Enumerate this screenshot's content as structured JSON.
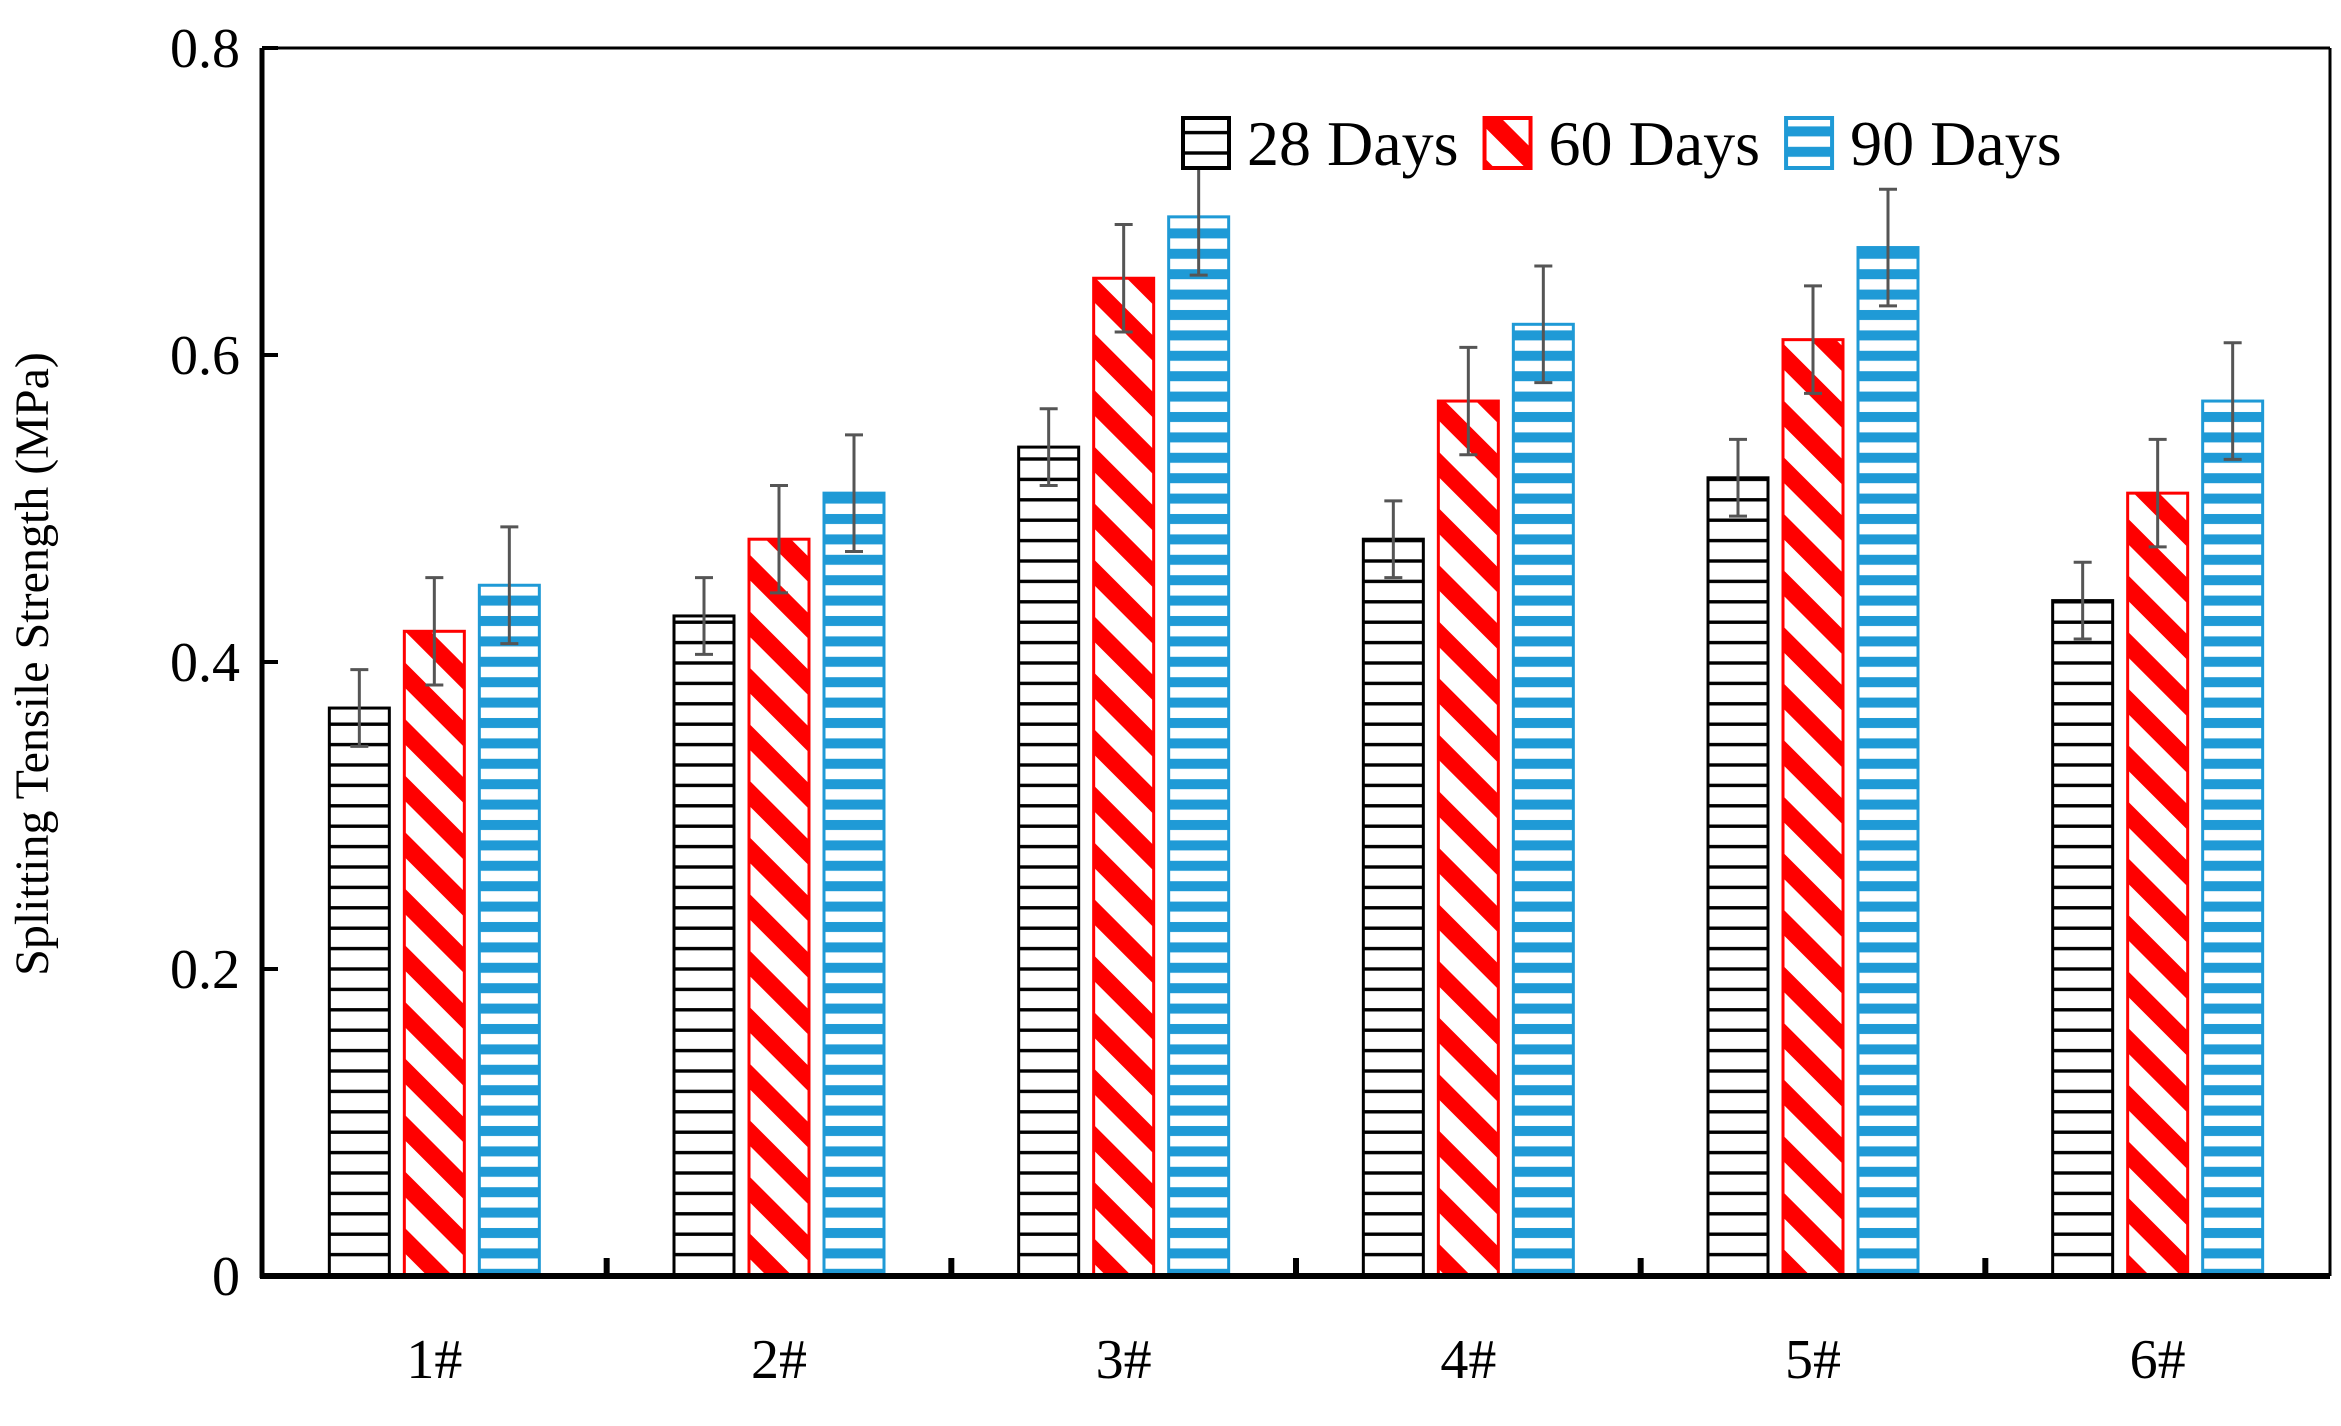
{
  "chart_data": {
    "type": "bar",
    "title": "",
    "xlabel": "",
    "ylabel": "Splitting Tensile Strength (MPa)",
    "ylim": [
      0,
      0.8
    ],
    "yticks": [
      "0",
      "0.2",
      "0.4",
      "0.6",
      "0.8"
    ],
    "categories": [
      "1#",
      "2#",
      "3#",
      "4#",
      "5#",
      "6#"
    ],
    "legend_position": "top-right",
    "series": [
      {
        "name": "28 Days",
        "color": "#000000",
        "pattern": "horizontal",
        "values": [
          0.37,
          0.43,
          0.54,
          0.48,
          0.52,
          0.44
        ],
        "errors": [
          0.025,
          0.025,
          0.025,
          0.025,
          0.025,
          0.025
        ]
      },
      {
        "name": "60 Days",
        "color": "#ff0000",
        "pattern": "diagonal",
        "values": [
          0.42,
          0.48,
          0.65,
          0.57,
          0.61,
          0.51
        ],
        "errors": [
          0.035,
          0.035,
          0.035,
          0.035,
          0.035,
          0.035
        ]
      },
      {
        "name": "90 Days",
        "color": "#1f9ad6",
        "pattern": "horizontal",
        "values": [
          0.45,
          0.51,
          0.69,
          0.62,
          0.67,
          0.57
        ],
        "errors": [
          0.038,
          0.038,
          0.038,
          0.038,
          0.038,
          0.038
        ]
      }
    ],
    "error_bar_color": "#555555"
  }
}
